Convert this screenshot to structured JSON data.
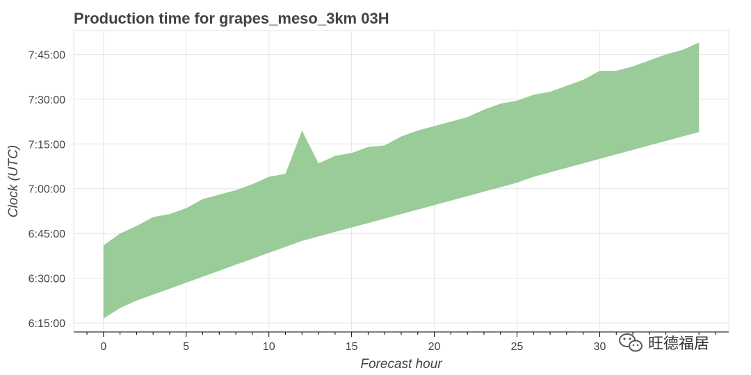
{
  "chart_data": {
    "type": "area",
    "title": "Production time for grapes_meso_3km 03H",
    "xlabel": "Forecast hour",
    "ylabel": "Clock (UTC)",
    "xlim": [
      -1.8,
      37.8
    ],
    "ylim": [
      "6:12:00",
      "7:53:00"
    ],
    "x_ticks": [
      0,
      5,
      10,
      15,
      20,
      25,
      30
    ],
    "x_tick_labels": [
      "0",
      "5",
      "10",
      "15",
      "20",
      "25",
      "30"
    ],
    "y_ticks": [
      "6:15:00",
      "6:30:00",
      "6:45:00",
      "7:00:00",
      "7:15:00",
      "7:30:00",
      "7:45:00"
    ],
    "grid": true,
    "fill_color": "#99cc99",
    "x": [
      0,
      1,
      2,
      3,
      4,
      5,
      6,
      7,
      8,
      9,
      10,
      11,
      12,
      13,
      14,
      15,
      16,
      17,
      18,
      19,
      20,
      21,
      22,
      23,
      24,
      25,
      26,
      27,
      28,
      29,
      30,
      31,
      32,
      33,
      34,
      35,
      36
    ],
    "upper": [
      "6:41:00",
      "6:45:00",
      "6:47:30",
      "6:50:30",
      "6:51:30",
      "6:53:30",
      "6:56:30",
      "6:58:00",
      "6:59:30",
      "7:01:30",
      "7:04:00",
      "7:05:00",
      "7:19:30",
      "7:08:30",
      "7:11:00",
      "7:12:00",
      "7:14:00",
      "7:14:30",
      "7:17:30",
      "7:19:30",
      "7:21:00",
      "7:22:30",
      "7:24:00",
      "7:26:30",
      "7:28:30",
      "7:29:30",
      "7:31:30",
      "7:32:30",
      "7:34:30",
      "7:36:30",
      "7:39:30",
      "7:39:30",
      "7:41:00",
      "7:43:00",
      "7:45:00",
      "7:46:30",
      "7:49:00"
    ],
    "lower": [
      "6:16:30",
      "6:20:00",
      "6:22:30",
      "6:24:30",
      "6:26:30",
      "6:28:30",
      "6:30:30",
      "6:32:30",
      "6:34:30",
      "6:36:30",
      "6:38:30",
      "6:40:30",
      "6:42:30",
      "6:44:00",
      "6:45:30",
      "6:47:00",
      "6:48:30",
      "6:50:00",
      "6:51:30",
      "6:53:00",
      "6:54:30",
      "6:56:00",
      "6:57:30",
      "6:59:00",
      "7:00:30",
      "7:02:00",
      "7:04:00",
      "7:05:30",
      "7:07:00",
      "7:08:30",
      "7:10:00",
      "7:11:30",
      "7:13:00",
      "7:14:30",
      "7:16:00",
      "7:17:30",
      "7:19:00"
    ]
  },
  "watermark": {
    "text": "旺德福居",
    "icon": "wechat-icon"
  }
}
